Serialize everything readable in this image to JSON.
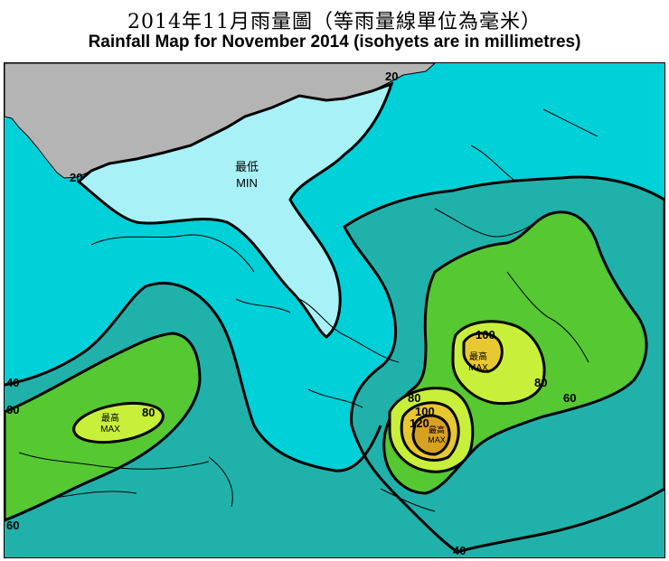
{
  "title": {
    "zh": "2014年11月雨量圖（等雨量線單位為毫米）",
    "en": "Rainfall Map for November 2014 (isohyets are in millimetres)"
  },
  "colors": {
    "sea": "#00d0d8",
    "land_outside": "#b4b4b4",
    "band_0_20": "#a8f2f7",
    "band_20_40": "#00d0d8",
    "band_40_60": "#20b2aa",
    "band_60_80": "#55c832",
    "band_80_100": "#c8f03a",
    "band_100_120": "#e8c830",
    "band_120_plus": "#d8a020",
    "isohyet": "#000000"
  },
  "isohyet_labels": {
    "l20_top": "20",
    "l20_left": "20",
    "l40_west": "40",
    "l40_south": "40",
    "l60_west": "60",
    "l60_southwest": "60",
    "l60_east": "60",
    "l80_west": "80",
    "l80_east": "80",
    "l80_south": "80",
    "l100_east": "100",
    "l100_south": "100",
    "l120_south": "120"
  },
  "markers": {
    "min_zh": "最低",
    "min_en": "MIN",
    "max_zh": "最高",
    "max_en": "MAX"
  }
}
